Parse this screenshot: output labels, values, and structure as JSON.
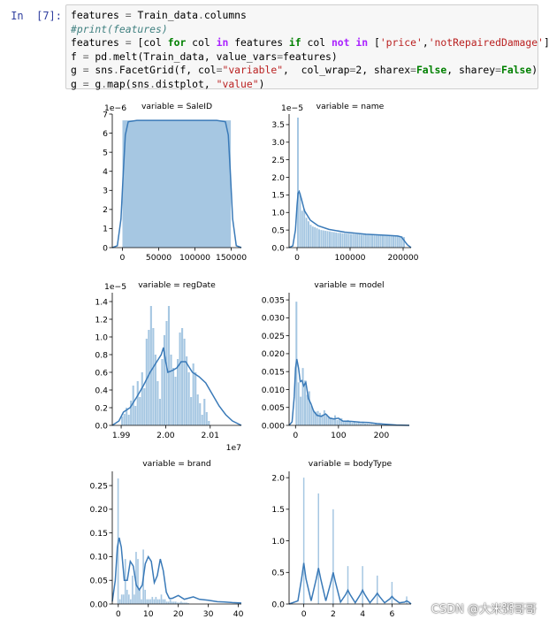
{
  "prompt_label": "In  [7]:",
  "code_lines": [
    [
      [
        "n",
        "features "
      ],
      [
        "o",
        "="
      ],
      [
        "n",
        " Train_data"
      ],
      [
        "o",
        "."
      ],
      [
        "n",
        "columns"
      ]
    ],
    [
      [
        "c",
        "#print(features)"
      ]
    ],
    [
      [
        "n",
        "features "
      ],
      [
        "o",
        "="
      ],
      [
        "n",
        " ["
      ],
      [
        "n",
        "col "
      ],
      [
        "k",
        "for"
      ],
      [
        "n",
        " col "
      ],
      [
        "ow",
        "in"
      ],
      [
        "n",
        " features "
      ],
      [
        "k",
        "if"
      ],
      [
        "n",
        " col "
      ],
      [
        "ow",
        "not"
      ],
      [
        "n",
        " "
      ],
      [
        "ow",
        "in"
      ],
      [
        "n",
        " ["
      ],
      [
        "s",
        "'price'"
      ],
      [
        "n",
        ","
      ],
      [
        "s",
        "'notRepairedDamage'"
      ],
      [
        "n",
        "]]"
      ]
    ],
    [
      [
        "n",
        "f "
      ],
      [
        "o",
        "="
      ],
      [
        "n",
        " pd"
      ],
      [
        "o",
        "."
      ],
      [
        "n",
        "melt(Train_data, value_vars"
      ],
      [
        "o",
        "="
      ],
      [
        "n",
        "features)"
      ]
    ],
    [
      [
        "n",
        "g "
      ],
      [
        "o",
        "="
      ],
      [
        "n",
        " sns"
      ],
      [
        "o",
        "."
      ],
      [
        "n",
        "FacetGrid(f, col"
      ],
      [
        "o",
        "="
      ],
      [
        "s",
        "\"variable\""
      ],
      [
        "n",
        ",  col_wrap"
      ],
      [
        "o",
        "="
      ],
      [
        "n",
        "2, sharex"
      ],
      [
        "o",
        "="
      ],
      [
        "k",
        "False"
      ],
      [
        "n",
        ", sharey"
      ],
      [
        "o",
        "="
      ],
      [
        "k",
        "False"
      ],
      [
        "n",
        ")"
      ]
    ],
    [
      [
        "n",
        "g "
      ],
      [
        "o",
        "="
      ],
      [
        "n",
        " g"
      ],
      [
        "o",
        "."
      ],
      [
        "n",
        "map(sns"
      ],
      [
        "o",
        "."
      ],
      [
        "n",
        "distplot, "
      ],
      [
        "s",
        "\"value\""
      ],
      [
        "n",
        ")"
      ]
    ]
  ],
  "watermark": "CSDN @大米粥哥哥",
  "colors": {
    "bar": "#a6c7e2",
    "kde": "#3a7ab8",
    "axis": "#000000"
  },
  "chart_data": [
    {
      "type": "bar",
      "title": "variable = SaleID",
      "offset_label": "1e−6",
      "xlim": [
        -14000,
        164000
      ],
      "ylim": [
        0,
        7
      ],
      "xticks": [
        0,
        50000,
        100000,
        150000
      ],
      "xticklabels": [
        "0",
        "50000",
        "100000",
        "150000"
      ],
      "yticks": [
        0,
        1,
        2,
        3,
        4,
        5,
        6,
        7
      ],
      "yticklabels": [
        "0",
        "1",
        "2",
        "3",
        "4",
        "5",
        "6",
        "7"
      ],
      "bars": {
        "start": 0,
        "width": 150000,
        "values": [
          6.67
        ]
      },
      "kde": [
        [
          -14000,
          0
        ],
        [
          -7000,
          0.1
        ],
        [
          -2000,
          1.5
        ],
        [
          1000,
          3.8
        ],
        [
          4000,
          5.9
        ],
        [
          8000,
          6.6
        ],
        [
          20000,
          6.67
        ],
        [
          130000,
          6.67
        ],
        [
          142000,
          6.6
        ],
        [
          146000,
          5.9
        ],
        [
          149000,
          3.8
        ],
        [
          152000,
          1.5
        ],
        [
          157000,
          0.1
        ],
        [
          164000,
          0
        ]
      ]
    },
    {
      "type": "bar",
      "title": "variable = name",
      "offset_label": "1e−5",
      "xlim": [
        -15000,
        215000
      ],
      "ylim": [
        0,
        3.8
      ],
      "xticks": [
        0,
        100000,
        200000
      ],
      "xticklabels": [
        "0",
        "100000",
        "200000"
      ],
      "yticks": [
        0,
        0.5,
        1,
        1.5,
        2,
        2.5,
        3,
        3.5
      ],
      "yticklabels": [
        "0.0",
        "0.5",
        "1.0",
        "1.5",
        "2.0",
        "2.5",
        "3.0",
        "3.5"
      ],
      "bars": {
        "start": 0,
        "width": 4000,
        "values": [
          3.7,
          1.55,
          1.05,
          1.1,
          0.85,
          0.75,
          0.65,
          0.6,
          0.58,
          0.55,
          0.52,
          0.5,
          0.49,
          0.48,
          0.47,
          0.46,
          0.45,
          0.44,
          0.43,
          0.42,
          0.42,
          0.41,
          0.41,
          0.4,
          0.4,
          0.39,
          0.39,
          0.38,
          0.38,
          0.38,
          0.37,
          0.37,
          0.37,
          0.36,
          0.36,
          0.36,
          0.35,
          0.35,
          0.35,
          0.35,
          0.34,
          0.34,
          0.34,
          0.34,
          0.33,
          0.33,
          0.33,
          0.33,
          0.33,
          0.32,
          0.3
        ]
      },
      "kde": [
        [
          -15000,
          0
        ],
        [
          -8000,
          0.05
        ],
        [
          -3000,
          0.5
        ],
        [
          0,
          1.2
        ],
        [
          2000,
          1.55
        ],
        [
          4000,
          1.6
        ],
        [
          8000,
          1.4
        ],
        [
          14000,
          1.05
        ],
        [
          25000,
          0.78
        ],
        [
          40000,
          0.62
        ],
        [
          60000,
          0.52
        ],
        [
          90000,
          0.44
        ],
        [
          130000,
          0.38
        ],
        [
          170000,
          0.35
        ],
        [
          190000,
          0.33
        ],
        [
          197000,
          0.3
        ],
        [
          202000,
          0.2
        ],
        [
          208000,
          0.08
        ],
        [
          215000,
          0
        ]
      ]
    },
    {
      "type": "bar",
      "title": "variable = regDate",
      "offset_label": "1e−5",
      "x_offset_label": "1e7",
      "xlim": [
        19880000,
        20170000
      ],
      "ylim": [
        0,
        1.5
      ],
      "xticks": [
        19900000,
        20000000,
        20100000
      ],
      "xticklabels": [
        "1.99",
        "2.00",
        "2.01"
      ],
      "yticks": [
        0,
        0.2,
        0.4,
        0.6,
        0.8,
        1.0,
        1.2,
        1.4
      ],
      "yticklabels": [
        "0.0",
        "0.2",
        "0.4",
        "0.6",
        "0.8",
        "1.0",
        "1.2",
        "1.4"
      ],
      "bars": {
        "start": 19900000,
        "width": 5000,
        "values": [
          0.1,
          0.13,
          0.2,
          0.12,
          0.28,
          0.45,
          0.22,
          0.5,
          0.32,
          0.6,
          0.42,
          0.98,
          1.08,
          1.35,
          1.1,
          0.8,
          0.5,
          0.3,
          0.75,
          1.02,
          1.18,
          1.35,
          0.8,
          0.65,
          0.55,
          0.75,
          1.05,
          1.1,
          0.98,
          0.78,
          0.6,
          0.32,
          0.7,
          0.6,
          0.35,
          0.25,
          0.12,
          0.3,
          0.15,
          0.05
        ]
      },
      "kde": [
        [
          19880000,
          0
        ],
        [
          19895000,
          0.05
        ],
        [
          19905000,
          0.15
        ],
        [
          19920000,
          0.2
        ],
        [
          19935000,
          0.32
        ],
        [
          19950000,
          0.45
        ],
        [
          19965000,
          0.6
        ],
        [
          19980000,
          0.72
        ],
        [
          19990000,
          0.8
        ],
        [
          19995000,
          0.88
        ],
        [
          20000000,
          0.72
        ],
        [
          20005000,
          0.6
        ],
        [
          20015000,
          0.62
        ],
        [
          20025000,
          0.65
        ],
        [
          20035000,
          0.72
        ],
        [
          20045000,
          0.72
        ],
        [
          20060000,
          0.6
        ],
        [
          20075000,
          0.55
        ],
        [
          20090000,
          0.48
        ],
        [
          20105000,
          0.35
        ],
        [
          20120000,
          0.22
        ],
        [
          20135000,
          0.12
        ],
        [
          20150000,
          0.05
        ],
        [
          20170000,
          0
        ]
      ]
    },
    {
      "type": "bar",
      "title": "variable = model",
      "xlim": [
        -15,
        265
      ],
      "ylim": [
        0,
        0.037
      ],
      "xticks": [
        0,
        100,
        200
      ],
      "xticklabels": [
        "0",
        "100",
        "200"
      ],
      "yticks": [
        0,
        0.005,
        0.01,
        0.015,
        0.02,
        0.025,
        0.03,
        0.035
      ],
      "yticklabels": [
        "0.000",
        "0.005",
        "0.010",
        "0.015",
        "0.020",
        "0.025",
        "0.030",
        "0.035"
      ],
      "bars": {
        "start": 0,
        "width": 5,
        "values": [
          0.0345,
          0.012,
          0.008,
          0.016,
          0.0125,
          0.0085,
          0.0095,
          0.0055,
          0.0042,
          0.0038,
          0.004,
          0.0035,
          0.003,
          0.0042,
          0.0032,
          0.0025,
          0.0022,
          0.002,
          0.0028,
          0.0015,
          0.0018,
          0.002,
          0.0012,
          0.001,
          0.0015,
          0.0012,
          0.0008,
          0.001,
          0.0007,
          0.0009,
          0.0006,
          0.0008,
          0.0005,
          0.0005,
          0.0004,
          0.0004,
          0.0003,
          0.0004,
          0.0003,
          0.0002,
          0.0003,
          0.0002,
          0.0002,
          0.0002,
          0.0001,
          0.0001,
          0.0001,
          0.0001,
          0.0001,
          0.0001
        ]
      },
      "kde": [
        [
          -15,
          0
        ],
        [
          -8,
          0.001
        ],
        [
          -3,
          0.008
        ],
        [
          0,
          0.016
        ],
        [
          3,
          0.0185
        ],
        [
          7,
          0.016
        ],
        [
          11,
          0.0122
        ],
        [
          15,
          0.0125
        ],
        [
          19,
          0.011
        ],
        [
          24,
          0.012
        ],
        [
          30,
          0.0075
        ],
        [
          36,
          0.006
        ],
        [
          42,
          0.004
        ],
        [
          50,
          0.0028
        ],
        [
          60,
          0.0025
        ],
        [
          70,
          0.0032
        ],
        [
          80,
          0.002
        ],
        [
          90,
          0.0018
        ],
        [
          100,
          0.002
        ],
        [
          110,
          0.0012
        ],
        [
          130,
          0.0011
        ],
        [
          150,
          0.0009
        ],
        [
          170,
          0.0008
        ],
        [
          190,
          0.0005
        ],
        [
          210,
          0.0003
        ],
        [
          235,
          0.0001
        ],
        [
          265,
          0
        ]
      ]
    },
    {
      "type": "bar",
      "title": "variable = brand",
      "xlim": [
        -2,
        41
      ],
      "ylim": [
        0,
        0.28
      ],
      "xticks": [
        0,
        10,
        20,
        30,
        40
      ],
      "xticklabels": [
        "0",
        "10",
        "20",
        "30",
        "40"
      ],
      "yticks": [
        0,
        0.05,
        0.1,
        0.15,
        0.2,
        0.25
      ],
      "yticklabels": [
        "0.00",
        "0.05",
        "0.10",
        "0.15",
        "0.20",
        "0.25"
      ],
      "bars": {
        "start": -0.3,
        "width": 0.6,
        "values": [
          0.265,
          0.01,
          0.02,
          0.02,
          0.095,
          0.03,
          0.02,
          0.01,
          0.06,
          0.02,
          0.11,
          0.095,
          0.03,
          0.01,
          0.115,
          0.03,
          0.01,
          0.01,
          0.01,
          0.015,
          0.01,
          0.015,
          0.01,
          0.01,
          0.02,
          0.01,
          0.01,
          0.005,
          0.005,
          0.01,
          0.005,
          0.005,
          0.005,
          0.003,
          0.003,
          0.005,
          0.003,
          0.003,
          0.003,
          0.002
        ]
      },
      "kde": [
        [
          -2,
          0.005
        ],
        [
          -1,
          0.05
        ],
        [
          -0.3,
          0.12
        ],
        [
          0.3,
          0.14
        ],
        [
          1,
          0.12
        ],
        [
          2,
          0.05
        ],
        [
          3,
          0.05
        ],
        [
          4,
          0.09
        ],
        [
          5,
          0.08
        ],
        [
          6,
          0.04
        ],
        [
          7,
          0.03
        ],
        [
          8,
          0.04
        ],
        [
          9,
          0.085
        ],
        [
          10,
          0.1
        ],
        [
          11,
          0.09
        ],
        [
          12,
          0.045
        ],
        [
          13,
          0.06
        ],
        [
          14,
          0.095
        ],
        [
          15,
          0.07
        ],
        [
          16,
          0.025
        ],
        [
          17,
          0.012
        ],
        [
          18,
          0.012
        ],
        [
          20,
          0.018
        ],
        [
          22,
          0.01
        ],
        [
          25,
          0.015
        ],
        [
          27,
          0.01
        ],
        [
          30,
          0.008
        ],
        [
          33,
          0.005
        ],
        [
          36,
          0.004
        ],
        [
          38,
          0.003
        ],
        [
          41,
          0.002
        ]
      ]
    },
    {
      "type": "bar",
      "title": "variable = bodyType",
      "xlim": [
        -1,
        7.3
      ],
      "ylim": [
        0,
        2.1
      ],
      "xticks": [
        0,
        2,
        4,
        6
      ],
      "xticklabels": [
        "0",
        "2",
        "4",
        "6"
      ],
      "yticks": [
        0,
        0.5,
        1.0,
        1.5,
        2.0
      ],
      "yticklabels": [
        "0.0",
        "0.5",
        "1.0",
        "1.5",
        "2.0"
      ],
      "bars": {
        "centers": [
          0,
          1,
          2,
          3,
          4,
          5,
          6,
          7
        ],
        "width": 0.09,
        "values": [
          2.0,
          1.75,
          1.5,
          0.6,
          0.6,
          0.45,
          0.35,
          0.12
        ]
      },
      "kde": [
        [
          -1,
          0
        ],
        [
          -0.4,
          0.05
        ],
        [
          -0.15,
          0.4
        ],
        [
          0,
          0.65
        ],
        [
          0.15,
          0.4
        ],
        [
          0.5,
          0.05
        ],
        [
          0.85,
          0.4
        ],
        [
          1,
          0.57
        ],
        [
          1.15,
          0.4
        ],
        [
          1.5,
          0.05
        ],
        [
          1.85,
          0.35
        ],
        [
          2,
          0.5
        ],
        [
          2.15,
          0.35
        ],
        [
          2.5,
          0.03
        ],
        [
          2.85,
          0.15
        ],
        [
          3,
          0.22
        ],
        [
          3.15,
          0.15
        ],
        [
          3.5,
          0.02
        ],
        [
          3.85,
          0.15
        ],
        [
          4,
          0.22
        ],
        [
          4.15,
          0.15
        ],
        [
          4.5,
          0.02
        ],
        [
          4.85,
          0.12
        ],
        [
          5,
          0.17
        ],
        [
          5.15,
          0.12
        ],
        [
          5.5,
          0.02
        ],
        [
          5.85,
          0.08
        ],
        [
          6,
          0.12
        ],
        [
          6.15,
          0.08
        ],
        [
          6.5,
          0.02
        ],
        [
          6.85,
          0.03
        ],
        [
          7,
          0.05
        ],
        [
          7.15,
          0.03
        ],
        [
          7.3,
          0
        ]
      ]
    }
  ]
}
